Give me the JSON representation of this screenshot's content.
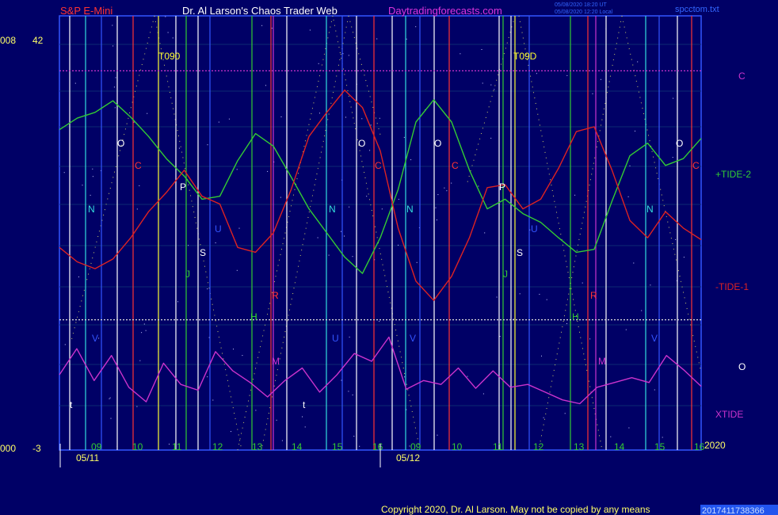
{
  "header": {
    "symbol": "S&P E-Mini",
    "title": "Dr. Al Larson's Chaos Trader Web",
    "site": "Daytradingforecasts.com",
    "stamp1": "05/08/2020 18:20 UT",
    "stamp2": "05/08/2020 12:20 Local",
    "file": "spcctom.txt"
  },
  "left_axis": {
    "top_a": "008",
    "top_b": "42",
    "bottom_a": "000",
    "bottom_b": "-3"
  },
  "copyright": "Copyright 2020, Dr. Al Larson. May not be copied by any means",
  "footer_code": "2017411738366",
  "chart_data": {
    "type": "line",
    "y_range": [
      -3,
      42
    ],
    "x_labels": {
      "dates": [
        "05/11",
        "05/12"
      ],
      "hours": [
        "09",
        "10",
        "11",
        "12",
        "13",
        "14",
        "15",
        "16",
        "09",
        "10",
        "11",
        "12",
        "13",
        "14",
        "15",
        "16"
      ],
      "year": "2020"
    },
    "series": [
      {
        "name": "+TIDE-2",
        "color": "#33cc33",
        "values": [
          30.2,
          31.4,
          32.0,
          33.2,
          31.5,
          29.5,
          27.2,
          25.4,
          23.0,
          23.3,
          27.0,
          29.8,
          28.5,
          25.3,
          22.0,
          19.5,
          17.0,
          15.3,
          19.0,
          24.0,
          31.0,
          33.3,
          31.0,
          26.0,
          22.0,
          23.0,
          21.5,
          20.6,
          19.0,
          17.5,
          17.8,
          22.8,
          27.5,
          28.8,
          26.5,
          27.2,
          29.3
        ]
      },
      {
        "name": "-TIDE-1",
        "color": "#dd2222",
        "values": [
          18.0,
          16.5,
          15.8,
          16.8,
          19.0,
          21.7,
          23.7,
          26.0,
          23.3,
          22.5,
          18.0,
          17.5,
          19.5,
          24.0,
          29.5,
          32.0,
          34.3,
          32.5,
          28.0,
          20.0,
          14.5,
          12.5,
          15.0,
          19.0,
          24.2,
          24.5,
          22.0,
          23.0,
          26.2,
          30.0,
          30.5,
          26.0,
          20.8,
          19.0,
          21.7,
          20.0,
          18.8
        ]
      },
      {
        "name": "XTIDE",
        "color": "#cc33cc",
        "values": [
          4.8,
          7.5,
          4.2,
          6.8,
          3.5,
          2.0,
          6.0,
          3.8,
          3.2,
          7.2,
          5.2,
          4.0,
          2.5,
          4.2,
          5.5,
          3.0,
          4.8,
          7.0,
          6.2,
          8.7,
          3.3,
          4.2,
          3.8,
          5.5,
          3.4,
          5.2,
          3.5,
          3.8,
          3.0,
          2.2,
          1.8,
          3.5,
          4.0,
          4.5,
          4.0,
          6.8,
          5.3,
          3.6
        ]
      }
    ],
    "levels": [
      {
        "name": "C",
        "value": 36.3,
        "color": "#cc33cc"
      },
      {
        "name": "O",
        "value": 10.5,
        "color": "#dddddd"
      }
    ],
    "line_labels": [
      {
        "text": "O",
        "color": "#ffffff"
      },
      {
        "text": "C",
        "color": "#ff3333"
      },
      {
        "text": "N",
        "color": "#33dddd"
      },
      {
        "text": "P",
        "color": "#ffffff"
      },
      {
        "text": "U",
        "color": "#3355ff"
      },
      {
        "text": "S",
        "color": "#ffffff"
      },
      {
        "text": "J",
        "color": "#33cc33"
      },
      {
        "text": "H",
        "color": "#33cc33"
      },
      {
        "text": "R",
        "color": "#ff3333"
      },
      {
        "text": "M",
        "color": "#cc33cc"
      },
      {
        "text": "V",
        "color": "#3355ff"
      },
      {
        "text": "t",
        "color": "#ffffff"
      },
      {
        "text": "T090",
        "color": "#ffff33"
      },
      {
        "text": "T09D",
        "color": "#ffff33"
      }
    ]
  }
}
